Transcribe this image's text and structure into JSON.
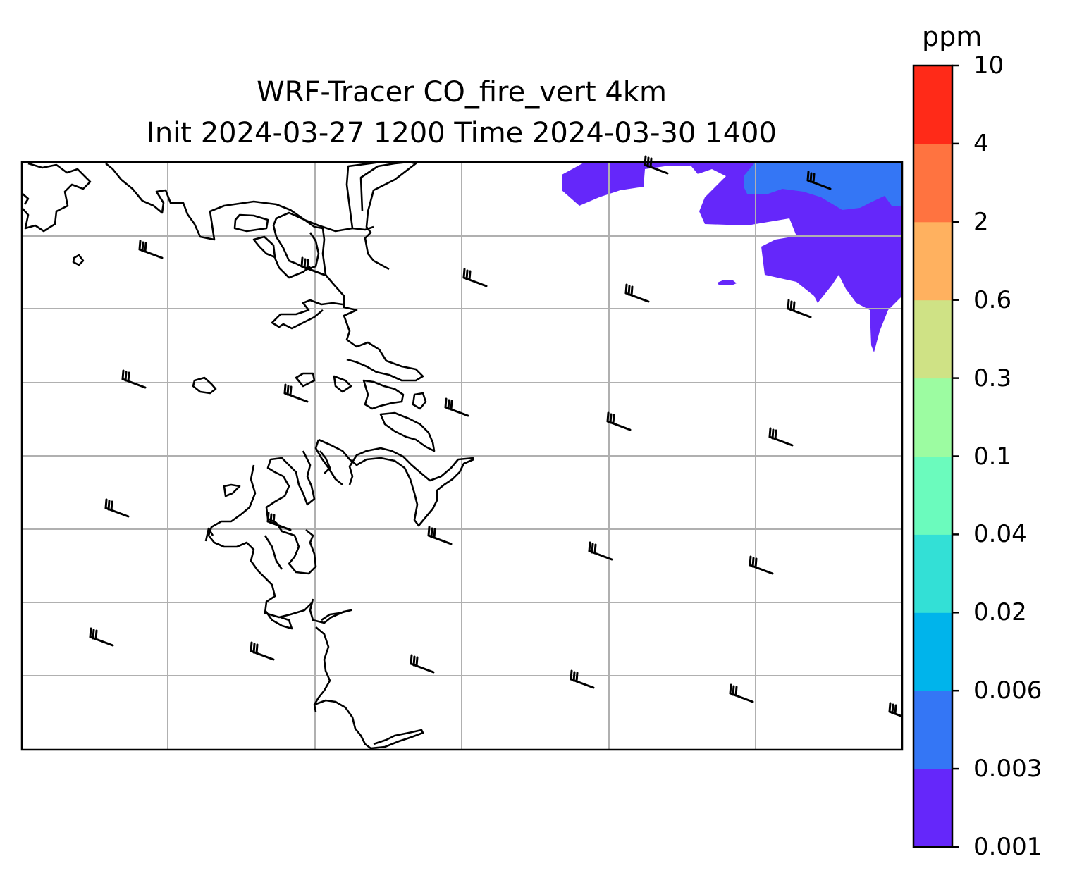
{
  "title_line1": "WRF-Tracer CO_fire_vert 4km",
  "title_line2": "Init 2024-03-27 1200 Time 2024-03-30 1400",
  "colorbar": {
    "unit": "ppm",
    "levels": [
      "0.001",
      "0.003",
      "0.006",
      "0.02",
      "0.04",
      "0.1",
      "0.3",
      "0.6",
      "2",
      "4",
      "10"
    ],
    "colors": [
      "#6527fa",
      "#3476f5",
      "#00b4eb",
      "#33e0d6",
      "#6bfbbd",
      "#9cfca1",
      "#cfe285",
      "#ffb15f",
      "#ff7340",
      "#ff2a18"
    ]
  },
  "map": {
    "gridlines": true,
    "coastline_color": "#000000",
    "grid_color": "#b0b0b0",
    "fill_levels_present": [
      "0.001-0.003",
      "0.003-0.006"
    ],
    "wind_barbs": "black barbs on a regular grid"
  }
}
